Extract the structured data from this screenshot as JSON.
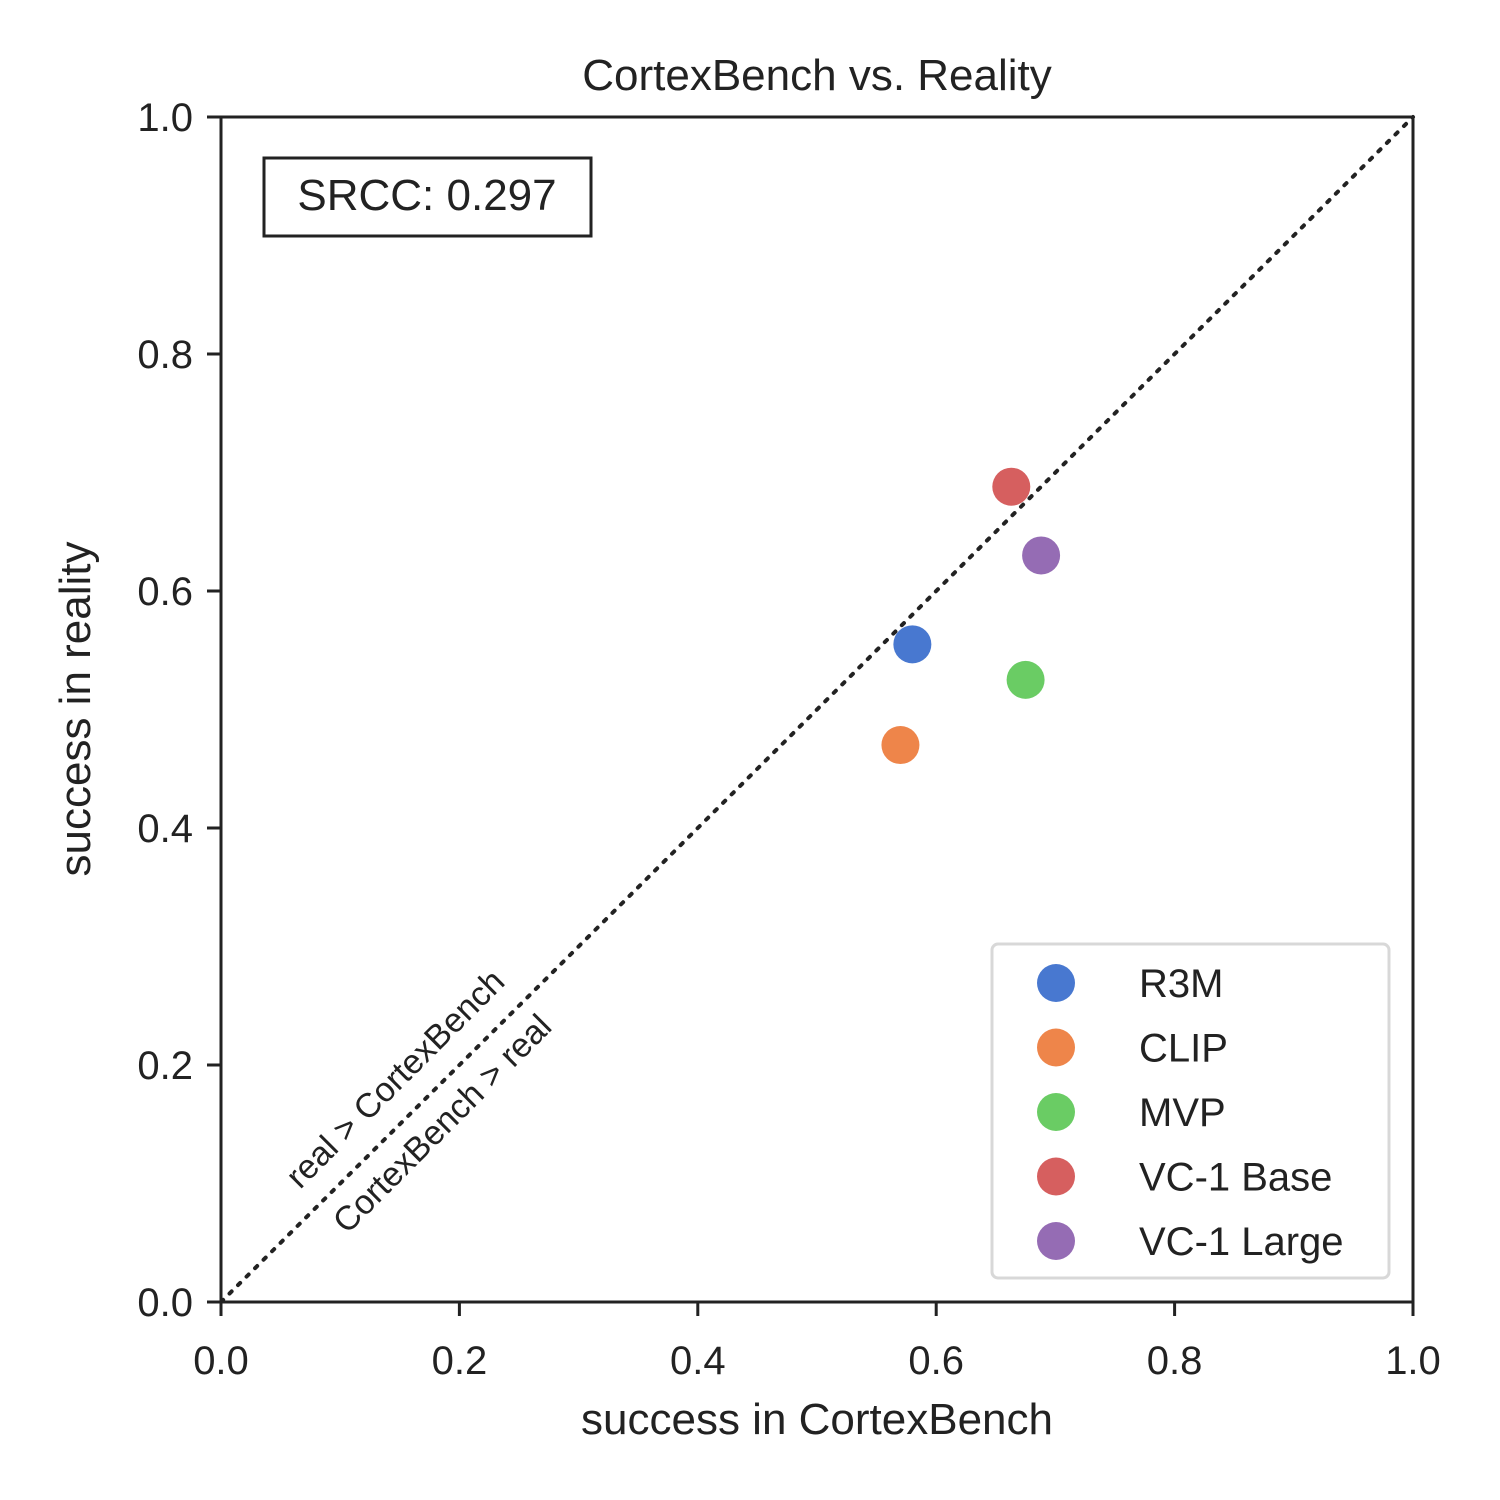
{
  "chart_data": {
    "type": "scatter",
    "title": "CortexBench vs. Reality",
    "xlabel": "success in CortexBench",
    "ylabel": "success in reality",
    "xlim": [
      0.0,
      1.0
    ],
    "ylim": [
      0.0,
      1.0
    ],
    "xticks": [
      "0.0",
      "0.2",
      "0.4",
      "0.6",
      "0.8",
      "1.0"
    ],
    "yticks": [
      "0.0",
      "0.2",
      "0.4",
      "0.6",
      "0.8",
      "1.0"
    ],
    "grid": false,
    "legend_position": "lower-right",
    "reference_line": {
      "style": "dotted",
      "from": [
        0,
        0
      ],
      "to": [
        1,
        1
      ]
    },
    "series": [
      {
        "name": "R3M",
        "color": "#4878d0",
        "x": 0.58,
        "y": 0.555
      },
      {
        "name": "CLIP",
        "color": "#ee854a",
        "x": 0.57,
        "y": 0.47
      },
      {
        "name": "MVP",
        "color": "#6acc64",
        "x": 0.675,
        "y": 0.525
      },
      {
        "name": "VC-1 Base",
        "color": "#d65f5f",
        "x": 0.663,
        "y": 0.688
      },
      {
        "name": "VC-1 Large",
        "color": "#956cb4",
        "x": 0.688,
        "y": 0.63
      }
    ],
    "annotations": {
      "srcc": "SRCC: 0.297",
      "above_diagonal": "real > CortexBench",
      "below_diagonal": "CortexBench > real"
    }
  }
}
